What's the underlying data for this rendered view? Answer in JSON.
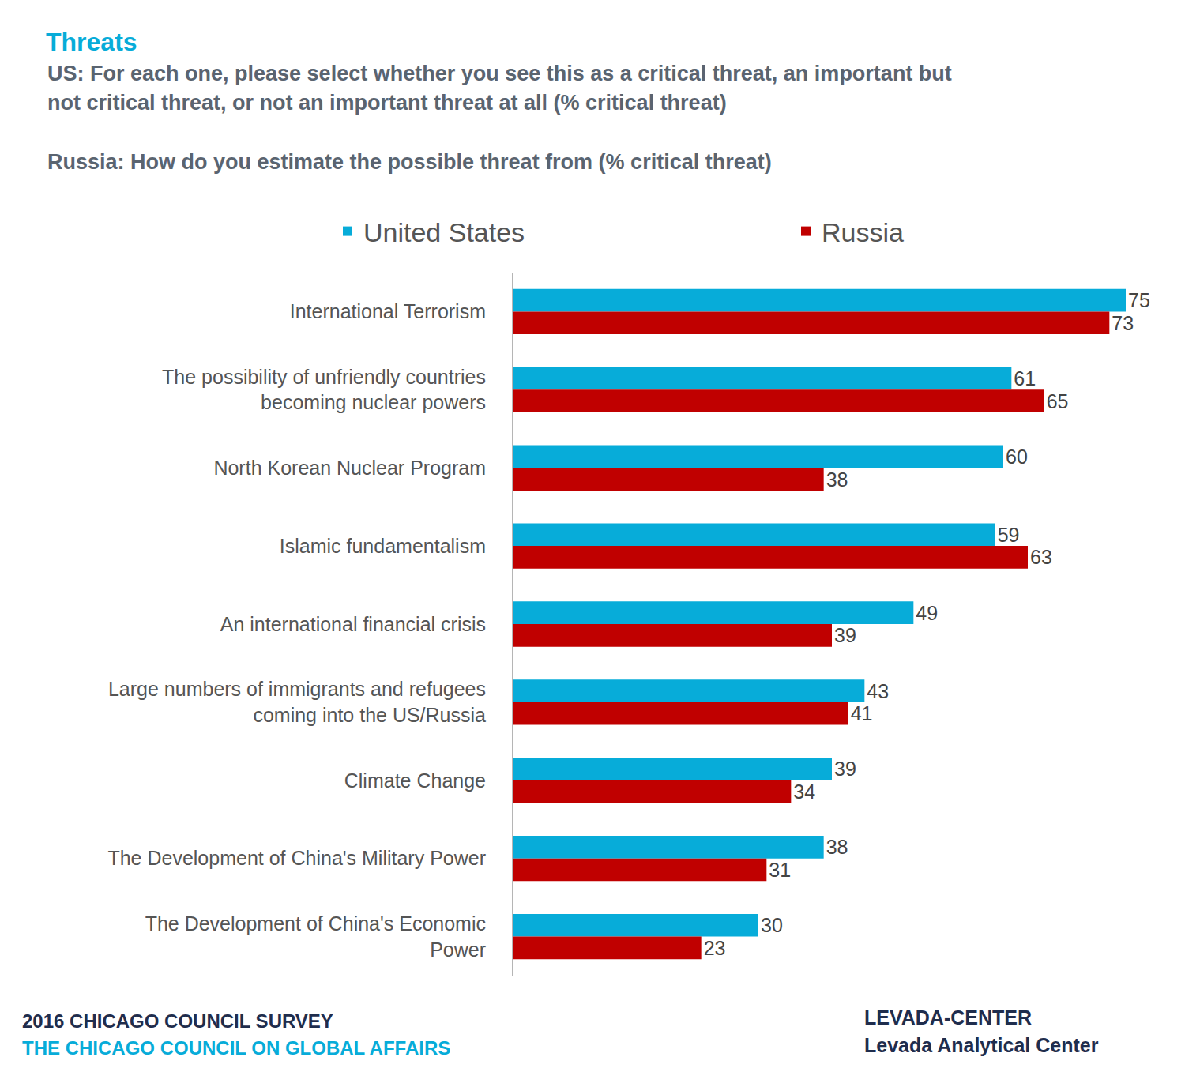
{
  "chart_data": {
    "type": "bar",
    "orientation": "horizontal",
    "title": "Threats",
    "subtitle": [
      "US: For each one, please select whether you see this as a critical threat, an important but",
      "not critical threat, or not an important threat at all (% critical threat)",
      "Russia: How do you estimate the possible threat from (% critical threat)"
    ],
    "categories": [
      "International Terrorism",
      "The possibility of unfriendly countries\nbecoming nuclear powers",
      "North Korean Nuclear Program",
      "Islamic fundamentalism",
      "An international financial crisis",
      "Large numbers of immigrants and refugees\ncoming into the US/Russia",
      "Climate Change",
      "The Development of China's Military Power",
      "The Development of China's Economic\nPower"
    ],
    "series": [
      {
        "name": "United States",
        "color": "#07acd9",
        "values": [
          75,
          61,
          60,
          59,
          49,
          43,
          39,
          38,
          30
        ]
      },
      {
        "name": "Russia",
        "color": "#c00000",
        "values": [
          73,
          65,
          38,
          63,
          39,
          41,
          34,
          31,
          23
        ]
      }
    ],
    "xlim": [
      0,
      75
    ],
    "data_labels": true,
    "tick_labels": "y",
    "grid": false,
    "legend": "top",
    "footer_left": [
      "2016 CHICAGO COUNCIL SURVEY",
      "THE CHICAGO COUNCIL ON GLOBAL AFFAIRS"
    ],
    "footer_right": [
      "LEVADA-CENTER",
      "Levada Analytical Center"
    ]
  }
}
